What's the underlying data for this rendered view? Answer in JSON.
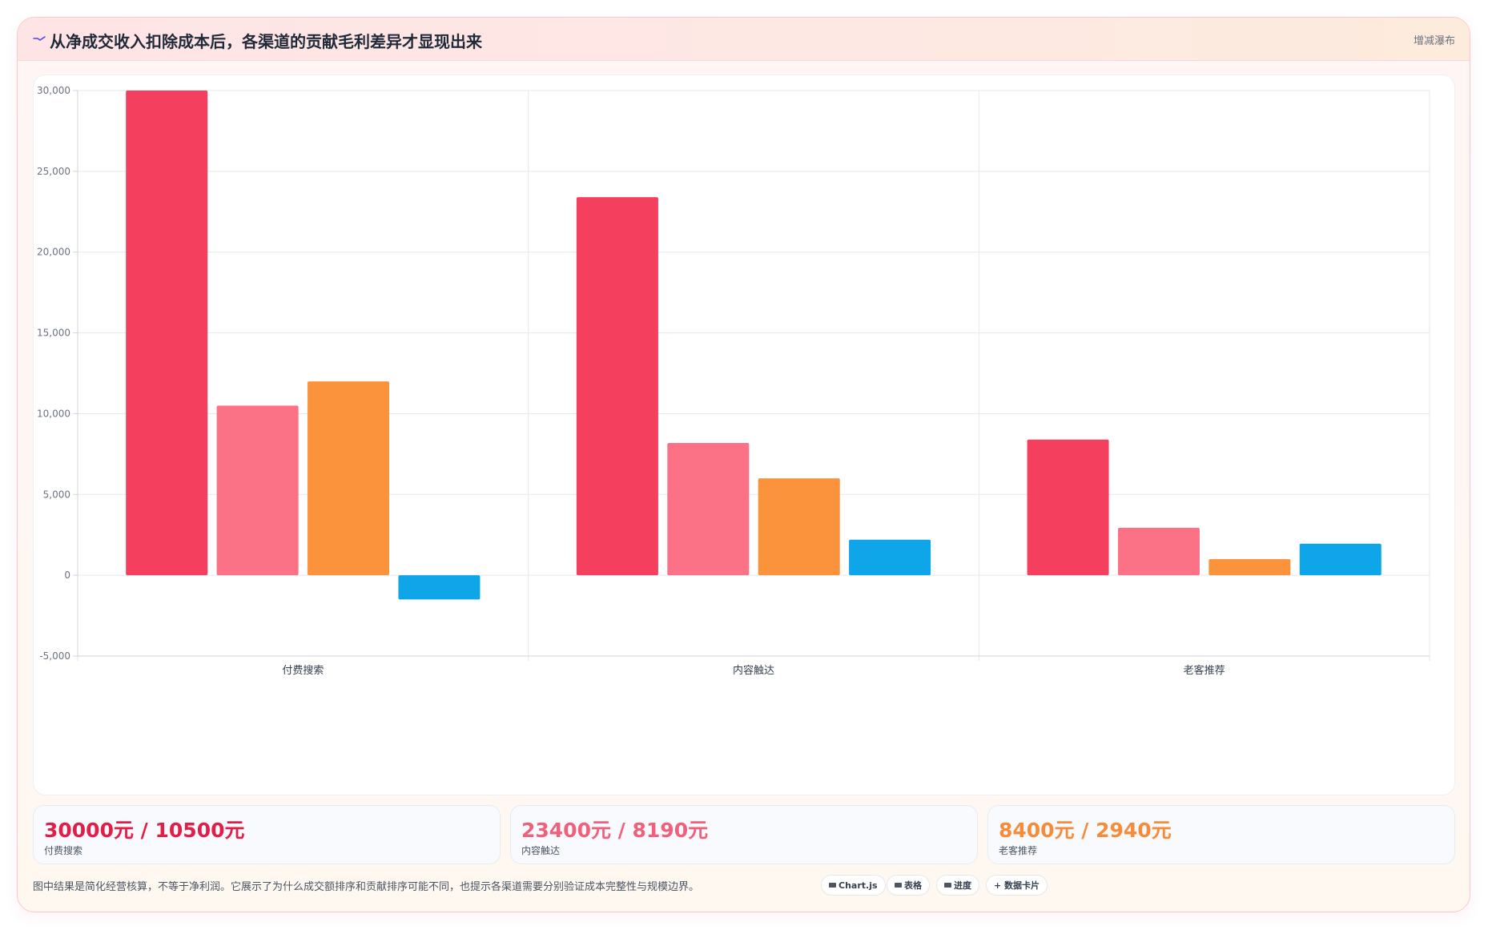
{
  "header": {
    "title": "从净成交收入扣除成本后，各渠道的贡献毛利差异才显现出来",
    "title_icon": "trend-line-icon",
    "layout_link": "增减瀑布"
  },
  "chart_data": {
    "type": "bar",
    "title": "",
    "xlabel": "",
    "ylabel": "",
    "categories": [
      "付费搜索",
      "内容触达",
      "老客推荐"
    ],
    "series": [
      {
        "values": [
          30000,
          23400,
          8400
        ],
        "color": "#f43f5e"
      },
      {
        "values": [
          10500,
          8190,
          2940
        ],
        "color": "#fb7185"
      },
      {
        "values": [
          12000,
          6000,
          1000
        ],
        "color": "#fb923c"
      },
      {
        "values": [
          -1500,
          2200,
          1950
        ],
        "color": "#0ea5e9"
      }
    ],
    "ylim": [
      -5000,
      30000
    ],
    "yticks": [
      -5000,
      0,
      5000,
      10000,
      15000,
      20000,
      25000,
      30000
    ],
    "ytick_labels": [
      "-5,000",
      "0",
      "5,000",
      "10,000",
      "15,000",
      "20,000",
      "25,000",
      "30,000"
    ],
    "grid": true,
    "legend": "none"
  },
  "stats": [
    {
      "value": "30000元 / 10500元",
      "label": "付费搜索",
      "color": "#e11d48"
    },
    {
      "value": "23400元 / 8190元",
      "label": "内容触达",
      "color": "#f0607a"
    },
    {
      "value": "8400元 / 2940元",
      "label": "老客推荐",
      "color": "#f68c3a"
    }
  ],
  "footer": {
    "note": "图中结果是简化经营核算，不等于净利润。它展示了为什么成交额排序和贡献排序可能不同，也提示各渠道需要分别验证成本完整性与规模边界。",
    "chips": [
      {
        "label": "Chart.js",
        "icon": "chart-icon"
      },
      {
        "label": "表格",
        "icon": "table-icon"
      },
      {
        "label": "进度",
        "icon": "progress-icon"
      },
      {
        "label": "数据卡片",
        "icon": "plus-icon"
      }
    ]
  }
}
